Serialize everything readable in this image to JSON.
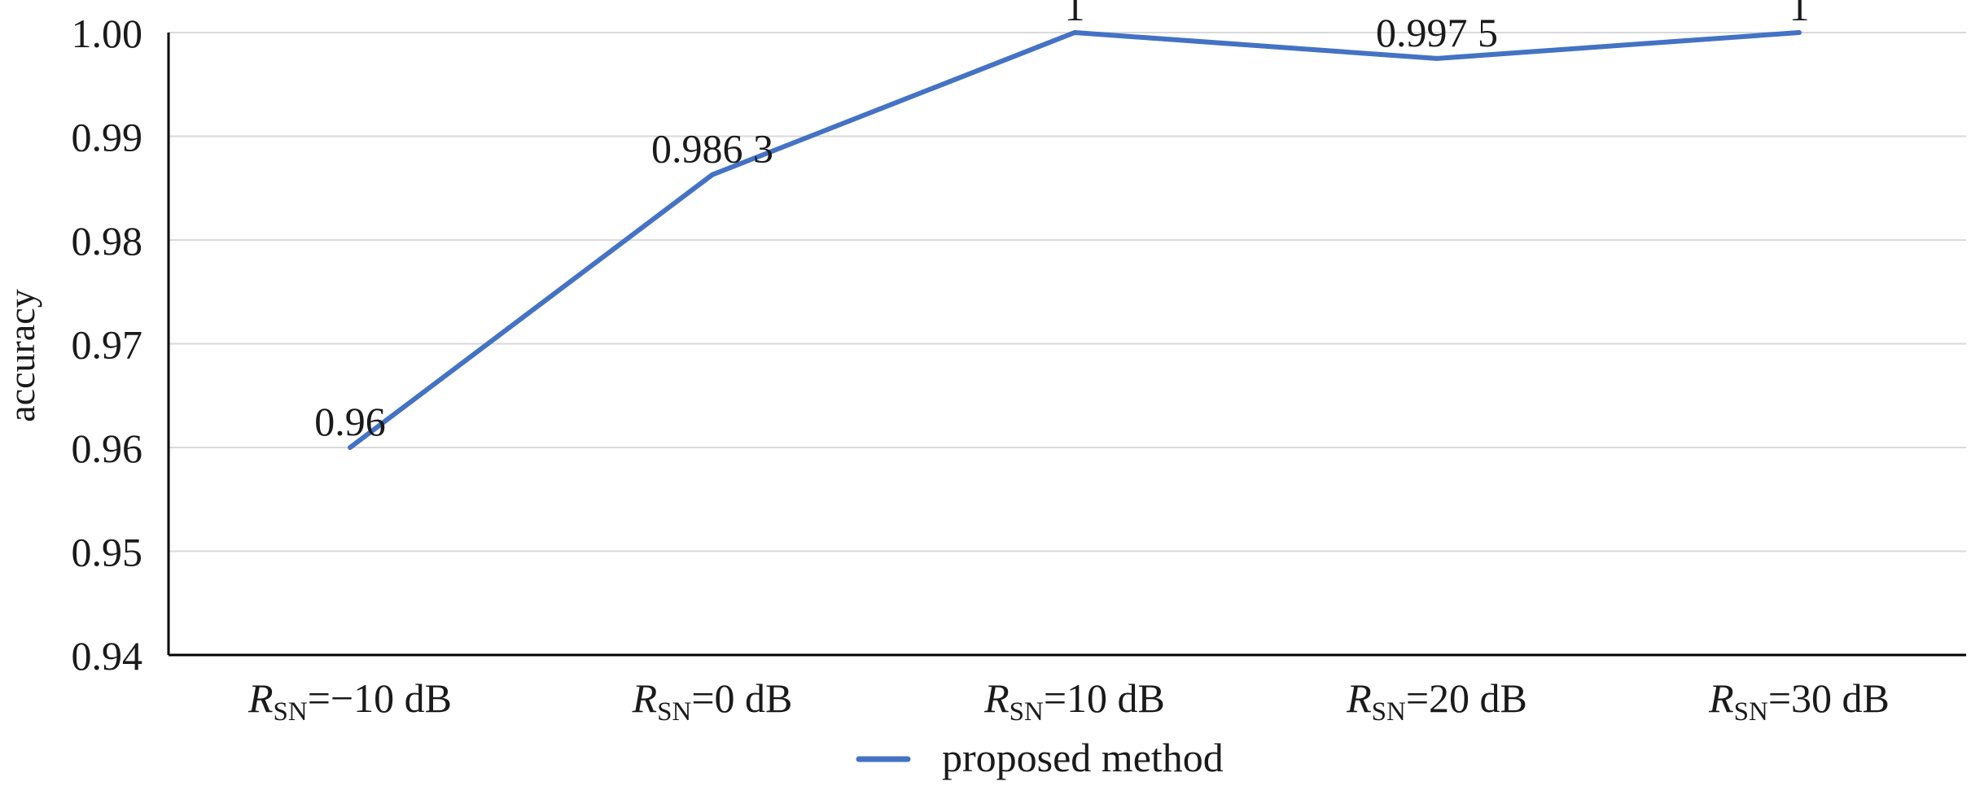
{
  "chart_data": {
    "type": "line",
    "categories": [
      {
        "prefix": "R",
        "sub": "SN",
        "suffix": "=−10 dB"
      },
      {
        "prefix": "R",
        "sub": "SN",
        "suffix": "=0 dB"
      },
      {
        "prefix": "R",
        "sub": "SN",
        "suffix": "=10 dB"
      },
      {
        "prefix": "R",
        "sub": "SN",
        "suffix": "=20 dB"
      },
      {
        "prefix": "R",
        "sub": "SN",
        "suffix": "=30 dB"
      }
    ],
    "series": [
      {
        "name": "proposed method",
        "values": [
          0.96,
          0.9863,
          1.0,
          0.9975,
          1.0
        ],
        "labels": [
          "0.96",
          "0.986 3",
          "1",
          "0.997 5",
          "1"
        ],
        "color": "#4472c4"
      }
    ],
    "ylabel": "accuracy",
    "ylim": [
      0.94,
      1.0
    ],
    "yticks": [
      "0.94",
      "0.95",
      "0.96",
      "0.97",
      "0.98",
      "0.99",
      "1.00"
    ],
    "ytick_values": [
      0.94,
      0.95,
      0.96,
      0.97,
      0.98,
      0.99,
      1.0
    ],
    "grid": true,
    "gridline_color": "#d9d9d9",
    "axis_color": "#000000",
    "legend": "bottom-center"
  }
}
